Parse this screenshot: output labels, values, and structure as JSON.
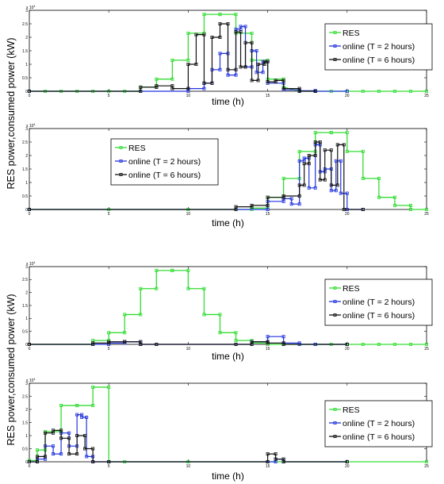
{
  "figure": {
    "ylabel_top": "RES power,consumed power (kW)",
    "ylabel_bottom": "RES power,consumed power (kW)"
  },
  "chart_data": [
    {
      "type": "line",
      "xlabel": "time (h)",
      "ylabel": "RES power,consumed power (kW)",
      "xlim": [
        0,
        25
      ],
      "ylim": [
        0,
        30000
      ],
      "xticks": [
        "0",
        "5",
        "10",
        "15",
        "20",
        "25"
      ],
      "yticks": [
        "0",
        "0.5",
        "1",
        "1.5",
        "2",
        "2.5",
        "3"
      ],
      "exponent": "x 10^4",
      "legend_position": "right",
      "grid": false,
      "series": [
        {
          "name": "RES",
          "color": "#33dd33",
          "x": [
            0,
            1,
            2,
            3,
            4,
            5,
            6,
            7,
            7,
            8,
            8,
            9,
            9,
            10,
            10,
            11,
            11,
            12,
            12,
            13,
            13,
            14,
            14,
            15,
            15,
            16,
            16,
            17,
            18,
            19,
            20,
            21,
            22,
            23,
            24,
            25
          ],
          "y": [
            0,
            0,
            0,
            0,
            0,
            0,
            0,
            0,
            1500,
            1500,
            4500,
            4500,
            11500,
            11500,
            21500,
            21500,
            28500,
            28500,
            28500,
            28500,
            21500,
            21500,
            11500,
            11500,
            4500,
            4500,
            1500,
            0,
            0,
            0,
            0,
            0,
            0,
            0,
            0,
            0
          ]
        },
        {
          "name": "online (T = 2 hours)",
          "color": "#2233dd",
          "x": [
            0,
            10,
            10,
            11,
            11,
            11.5,
            11.5,
            12,
            12,
            12.5,
            12.5,
            13,
            13,
            13.3,
            13.3,
            13.6,
            13.6,
            14,
            14,
            14.3,
            14.3,
            14.7,
            14.7,
            15,
            15,
            16,
            16,
            17,
            17,
            18,
            18,
            20
          ],
          "y": [
            0,
            0,
            1000,
            1000,
            3000,
            3000,
            8000,
            8000,
            14000,
            14000,
            6000,
            6000,
            23000,
            23000,
            24000,
            24000,
            9000,
            9000,
            15000,
            15000,
            7000,
            7000,
            11000,
            11000,
            3000,
            3000,
            500,
            500,
            200,
            200,
            0,
            0
          ]
        },
        {
          "name": "online (T = 6 hours)",
          "color": "#111111",
          "x": [
            0,
            7,
            7,
            8,
            8,
            9,
            9,
            10,
            10,
            10.5,
            10.5,
            11,
            11,
            11.5,
            11.5,
            12,
            12,
            12.5,
            12.5,
            13,
            13,
            13.3,
            13.3,
            13.6,
            13.6,
            14,
            14,
            14.4,
            14.4,
            14.8,
            14.8,
            15,
            15,
            15.5,
            15.5,
            16,
            16,
            17,
            17,
            18
          ],
          "y": [
            0,
            0,
            1500,
            1500,
            2000,
            2000,
            1000,
            1000,
            10000,
            10000,
            21000,
            21000,
            3000,
            3000,
            20000,
            20000,
            25000,
            25000,
            8000,
            8000,
            22000,
            22000,
            9000,
            9000,
            18000,
            18000,
            4000,
            4000,
            10000,
            10000,
            11000,
            11000,
            3500,
            3500,
            4000,
            4000,
            1000,
            1000,
            0,
            0
          ]
        }
      ]
    },
    {
      "type": "line",
      "xlabel": "time (h)",
      "ylabel": "RES power,consumed power (kW)",
      "xlim": [
        0,
        25
      ],
      "ylim": [
        0,
        30000
      ],
      "xticks": [
        "0",
        "5",
        "10",
        "15",
        "20",
        "25"
      ],
      "yticks": [
        "0",
        "0.5",
        "1",
        "1.5",
        "2",
        "2.5",
        "3"
      ],
      "exponent": "x 10^4",
      "legend_position": "top-left",
      "grid": false,
      "series": [
        {
          "name": "RES",
          "color": "#33dd33",
          "x": [
            0,
            5,
            10,
            13,
            14,
            14,
            15,
            15,
            16,
            16,
            17,
            17,
            18,
            18,
            19,
            19,
            20,
            20,
            21,
            21,
            22,
            22,
            23,
            23,
            24,
            24,
            25
          ],
          "y": [
            0,
            0,
            0,
            0,
            0,
            500,
            500,
            4500,
            4500,
            11500,
            11500,
            21500,
            21500,
            28500,
            28500,
            28500,
            28500,
            21500,
            21500,
            11500,
            11500,
            4500,
            4500,
            1500,
            1500,
            0,
            0
          ]
        },
        {
          "name": "online (T = 2 hours)",
          "color": "#2233dd",
          "x": [
            0,
            15,
            15,
            16,
            16,
            16.5,
            16.5,
            17,
            17,
            17.3,
            17.3,
            17.6,
            17.6,
            18,
            18,
            18.3,
            18.3,
            18.6,
            18.6,
            19,
            19,
            19.3,
            19.3,
            19.6,
            19.6,
            20,
            20,
            21
          ],
          "y": [
            0,
            0,
            3000,
            3000,
            4000,
            4000,
            2000,
            2000,
            18000,
            18000,
            19000,
            19000,
            8000,
            8000,
            24000,
            24000,
            14000,
            14000,
            15000,
            15000,
            7000,
            7000,
            18000,
            18000,
            6000,
            6000,
            0,
            0
          ]
        },
        {
          "name": "online (T = 6 hours)",
          "color": "#111111",
          "x": [
            0,
            13,
            13,
            14,
            14,
            15,
            15,
            16,
            16,
            17,
            17,
            17.3,
            17.3,
            17.6,
            17.6,
            18,
            18,
            18.3,
            18.3,
            18.6,
            18.6,
            19,
            19,
            19.4,
            19.4,
            19.8,
            19.8,
            21
          ],
          "y": [
            0,
            0,
            1000,
            1000,
            1500,
            1500,
            4500,
            4500,
            5000,
            5000,
            9000,
            9000,
            17000,
            17000,
            20000,
            20000,
            25000,
            25000,
            11000,
            11000,
            22000,
            22000,
            9000,
            9000,
            24000,
            24000,
            0,
            0
          ]
        }
      ]
    },
    {
      "type": "line",
      "xlabel": "time (h)",
      "ylabel": "RES power,consumed power (kW)",
      "xlim": [
        0,
        25
      ],
      "ylim": [
        0,
        30000
      ],
      "xticks": [
        "0",
        "5",
        "10",
        "15",
        "20",
        "25"
      ],
      "yticks": [
        "0",
        "0.5",
        "1",
        "1.5",
        "2",
        "2.5",
        "3"
      ],
      "exponent": "x 10^4",
      "legend_position": "right",
      "grid": false,
      "series": [
        {
          "name": "RES",
          "color": "#33dd33",
          "x": [
            0,
            4,
            4,
            5,
            5,
            6,
            6,
            7,
            7,
            8,
            8,
            9,
            9,
            10,
            10,
            11,
            11,
            12,
            12,
            13,
            13,
            14,
            14,
            15,
            15,
            16,
            16,
            17,
            18,
            19,
            20,
            21,
            22,
            23,
            24,
            25
          ],
          "y": [
            0,
            0,
            1500,
            1500,
            4500,
            4500,
            11500,
            11500,
            21500,
            21500,
            28500,
            28500,
            28500,
            28500,
            21500,
            21500,
            11500,
            11500,
            4500,
            4500,
            1500,
            1500,
            500,
            500,
            0,
            0,
            0,
            0,
            0,
            0,
            0,
            0,
            0,
            0,
            0,
            0
          ]
        },
        {
          "name": "online (T = 2 hours)",
          "color": "#2233dd",
          "x": [
            0,
            5,
            5,
            6,
            6,
            7,
            7,
            8,
            13,
            14,
            14,
            15,
            15,
            16,
            16,
            17,
            17,
            18,
            18,
            20
          ],
          "y": [
            0,
            0,
            500,
            500,
            1000,
            1000,
            0,
            0,
            0,
            0,
            1000,
            1000,
            3000,
            3000,
            500,
            500,
            0,
            0,
            0,
            0
          ]
        },
        {
          "name": "online (T = 6 hours)",
          "color": "#111111",
          "x": [
            0,
            4,
            4,
            5,
            5,
            6,
            6,
            7,
            7,
            8,
            13,
            14,
            14,
            15,
            15,
            16,
            16,
            20
          ],
          "y": [
            0,
            0,
            500,
            500,
            1000,
            1000,
            1000,
            1000,
            0,
            0,
            0,
            0,
            1000,
            1000,
            500,
            500,
            0,
            0
          ]
        }
      ]
    },
    {
      "type": "line",
      "xlabel": "time (h)",
      "ylabel": "RES power,consumed power (kW)",
      "xlim": [
        0,
        25
      ],
      "ylim": [
        0,
        30000
      ],
      "xticks": [
        "0",
        "5",
        "10",
        "15",
        "20",
        "25"
      ],
      "yticks": [
        "0",
        "0.5",
        "1",
        "1.5",
        "2",
        "2.5",
        "3"
      ],
      "exponent": "x 10^4",
      "legend_position": "right",
      "grid": false,
      "series": [
        {
          "name": "RES",
          "color": "#33dd33",
          "x": [
            0,
            0.5,
            0.5,
            1,
            1,
            2,
            2,
            3,
            3,
            4,
            4,
            5,
            5,
            6,
            10,
            15,
            20,
            25
          ],
          "y": [
            500,
            500,
            4500,
            4500,
            11500,
            11500,
            21500,
            21500,
            21500,
            21500,
            28500,
            28500,
            0,
            0,
            0,
            0,
            0,
            0
          ]
        },
        {
          "name": "online (T = 2 hours)",
          "color": "#2233dd",
          "x": [
            0,
            0.5,
            0.5,
            1,
            1,
            1.5,
            1.5,
            2,
            2,
            2.5,
            2.5,
            3,
            3,
            3.3,
            3.3,
            3.6,
            3.6,
            4,
            4,
            5,
            15,
            15.5,
            15.5,
            16,
            16,
            20
          ],
          "y": [
            0,
            0,
            1000,
            1000,
            6000,
            6000,
            3000,
            3000,
            11000,
            11000,
            6000,
            6000,
            18000,
            18000,
            17000,
            17000,
            2000,
            2000,
            0,
            0,
            0,
            0,
            1000,
            1000,
            0,
            0
          ]
        },
        {
          "name": "online (T = 6 hours)",
          "color": "#111111",
          "x": [
            0,
            0.5,
            0.5,
            1,
            1,
            1.5,
            1.5,
            2,
            2,
            2.5,
            2.5,
            3,
            3,
            3.5,
            3.5,
            4,
            4,
            5,
            15,
            15,
            15.5,
            15.5,
            16,
            16,
            20
          ],
          "y": [
            0,
            0,
            2000,
            2000,
            11000,
            11000,
            12000,
            12000,
            9000,
            9000,
            3000,
            3000,
            10000,
            10000,
            5000,
            5000,
            0,
            0,
            0,
            3000,
            3000,
            1000,
            1000,
            0,
            0
          ]
        }
      ]
    }
  ]
}
